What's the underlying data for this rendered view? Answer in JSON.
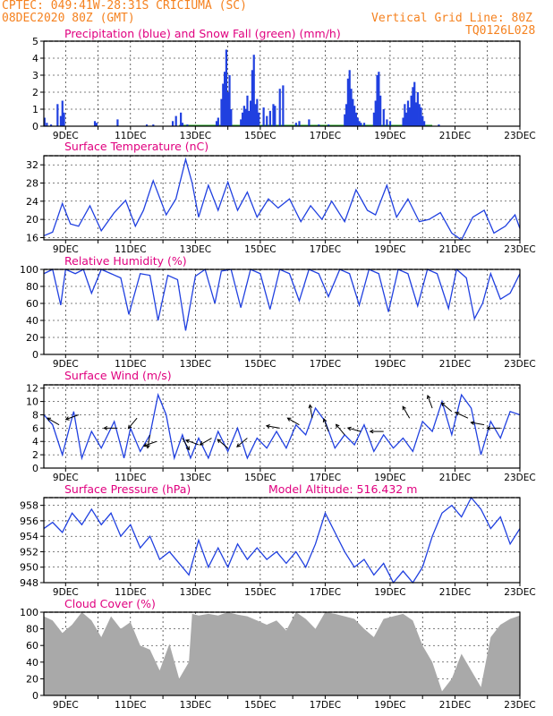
{
  "header": {
    "line1": "CPTEC:   049:41W-28:31S   CRICIUMA (SC)",
    "line2": "08DEC2020 80Z (GMT)",
    "vgrid": "Vertical Grid Line: 80Z",
    "code": "TQ0126L028"
  },
  "colors": {
    "header": "#f58220",
    "panel_title": "#e0007f",
    "series": "#2040e0",
    "snow": "#20a020",
    "cloud": "#a9a9a9"
  },
  "x_axis": {
    "tick_labels": [
      "9DEC",
      "11DEC",
      "13DEC",
      "15DEC",
      "17DEC",
      "19DEC",
      "21DEC",
      "23DEC"
    ],
    "tick_days": [
      9,
      11,
      13,
      15,
      17,
      19,
      21,
      23
    ],
    "xlim": [
      8.33,
      23.0
    ]
  },
  "chart_data": [
    {
      "type": "bar",
      "title": "Precipitation (blue) and Snow Fall (green) (mm/h)",
      "ylim": [
        0,
        5
      ],
      "yticks": [
        0,
        1,
        2,
        3,
        4,
        5
      ],
      "series": [
        {
          "x": [
            8.35,
            8.42,
            8.55,
            8.75,
            8.85,
            8.9,
            8.95,
            9.9,
            9.95,
            10.6,
            11.5,
            11.7,
            12.3,
            12.4,
            12.55,
            12.6,
            12.75,
            13.65,
            13.7,
            13.8,
            13.85,
            13.9,
            13.95,
            14.0,
            14.05,
            14.1,
            14.4,
            14.45,
            14.5,
            14.55,
            14.6,
            14.65,
            14.7,
            14.75,
            14.8,
            14.85,
            14.9,
            14.95,
            15.1,
            15.2,
            15.3,
            15.4,
            15.45,
            15.6,
            15.7,
            16.1,
            16.2,
            16.5,
            16.8,
            17.1,
            17.6,
            17.65,
            17.7,
            17.75,
            17.8,
            17.85,
            17.9,
            17.95,
            18.0,
            18.05,
            18.1,
            18.2,
            18.5,
            18.55,
            18.6,
            18.65,
            18.7,
            18.8,
            18.9,
            19.0,
            19.4,
            19.45,
            19.5,
            19.55,
            19.6,
            19.65,
            19.7,
            19.75,
            19.8,
            19.85,
            19.9,
            19.95,
            20.0,
            20.05,
            20.5
          ],
          "values": [
            0.5,
            0.2,
            0.1,
            1.3,
            0.6,
            1.5,
            0.8,
            0.3,
            0.2,
            0.4,
            0.1,
            0.1,
            0.3,
            0.6,
            0.8,
            0.2,
            0.1,
            0.3,
            0.5,
            1.6,
            2.5,
            3.2,
            4.5,
            2.0,
            3.0,
            1.0,
            0.4,
            0.8,
            1.2,
            1.0,
            1.8,
            0.9,
            1.5,
            3.3,
            4.2,
            1.3,
            1.6,
            0.8,
            1.1,
            0.6,
            0.9,
            1.3,
            1.2,
            2.2,
            2.4,
            0.2,
            0.3,
            0.4,
            0.1,
            0.1,
            0.7,
            1.3,
            2.8,
            3.3,
            2.2,
            1.6,
            1.2,
            0.8,
            0.5,
            0.3,
            0.2,
            0.2,
            0.8,
            1.5,
            3.0,
            3.2,
            1.8,
            1.0,
            0.4,
            0.3,
            0.5,
            1.3,
            0.8,
            1.5,
            1.1,
            1.8,
            2.3,
            2.6,
            1.4,
            2.0,
            1.3,
            1.1,
            0.6,
            0.3,
            0.1
          ]
        }
      ]
    },
    {
      "type": "line",
      "title": "Surface Temperature (nC)",
      "ylim": [
        15.5,
        34
      ],
      "yticks": [
        16,
        20,
        24,
        28,
        32
      ],
      "series": [
        {
          "x": [
            8.33,
            8.6,
            8.9,
            9.15,
            9.4,
            9.75,
            10.1,
            10.5,
            10.85,
            11.15,
            11.4,
            11.7,
            12.1,
            12.4,
            12.7,
            12.9,
            13.1,
            13.4,
            13.7,
            14.0,
            14.3,
            14.6,
            14.9,
            15.25,
            15.55,
            15.9,
            16.25,
            16.55,
            16.9,
            17.2,
            17.6,
            17.95,
            18.3,
            18.55,
            18.9,
            19.2,
            19.55,
            19.9,
            20.2,
            20.55,
            20.9,
            21.2,
            21.55,
            21.9,
            22.2,
            22.55,
            22.85,
            23.0
          ],
          "values": [
            16.4,
            17.2,
            23.5,
            19.0,
            18.5,
            23.0,
            17.5,
            21.5,
            24.2,
            18.5,
            22.0,
            28.5,
            21.0,
            24.5,
            33.2,
            28.0,
            20.5,
            27.5,
            22.0,
            28.2,
            22.0,
            26.0,
            20.5,
            24.5,
            22.5,
            24.5,
            19.5,
            23.0,
            20.0,
            24.0,
            19.5,
            26.5,
            22.0,
            21.0,
            27.5,
            20.5,
            24.5,
            19.5,
            20.0,
            21.5,
            17.0,
            15.5,
            20.5,
            22.0,
            17.0,
            18.5,
            21.0,
            18.0
          ]
        }
      ]
    },
    {
      "type": "line",
      "title": "Relative Humidity (%)",
      "ylim": [
        0,
        100
      ],
      "yticks": [
        0,
        20,
        40,
        60,
        80,
        100
      ],
      "series": [
        {
          "x": [
            8.33,
            8.6,
            8.85,
            9.0,
            9.3,
            9.55,
            9.8,
            10.1,
            10.4,
            10.7,
            10.95,
            11.3,
            11.6,
            11.85,
            12.15,
            12.45,
            12.7,
            13.0,
            13.3,
            13.6,
            13.8,
            14.1,
            14.4,
            14.7,
            15.0,
            15.3,
            15.6,
            15.9,
            16.2,
            16.5,
            16.8,
            17.1,
            17.45,
            17.75,
            18.05,
            18.35,
            18.65,
            18.95,
            19.25,
            19.55,
            19.85,
            20.15,
            20.45,
            20.8,
            21.05,
            21.35,
            21.6,
            21.85,
            22.1,
            22.4,
            22.7,
            23.0
          ],
          "values": [
            95,
            100,
            58,
            100,
            95,
            100,
            72,
            100,
            95,
            90,
            47,
            95,
            93,
            40,
            93,
            88,
            28,
            92,
            100,
            60,
            98,
            100,
            55,
            100,
            95,
            53,
            100,
            95,
            63,
            100,
            95,
            68,
            100,
            95,
            58,
            100,
            95,
            50,
            100,
            95,
            57,
            100,
            95,
            54,
            100,
            90,
            42,
            60,
            95,
            65,
            72,
            95
          ]
        }
      ]
    },
    {
      "type": "line",
      "title": "Surface Wind (m/s)",
      "ylim": [
        0,
        12.5
      ],
      "yticks": [
        0,
        2,
        4,
        6,
        8,
        10,
        12
      ],
      "series": [
        {
          "x": [
            8.33,
            8.6,
            8.9,
            9.25,
            9.5,
            9.8,
            10.1,
            10.5,
            10.8,
            11.0,
            11.3,
            11.6,
            11.85,
            12.1,
            12.35,
            12.6,
            12.85,
            13.1,
            13.4,
            13.7,
            14.0,
            14.3,
            14.6,
            14.9,
            15.2,
            15.5,
            15.8,
            16.1,
            16.4,
            16.7,
            17.0,
            17.3,
            17.6,
            17.9,
            18.2,
            18.5,
            18.8,
            19.1,
            19.4,
            19.7,
            20.0,
            20.3,
            20.6,
            20.9,
            21.2,
            21.5,
            21.8,
            22.1,
            22.4,
            22.7,
            23.0
          ],
          "values": [
            8.0,
            6.5,
            2.0,
            8.5,
            1.5,
            5.5,
            3.0,
            7.0,
            1.5,
            6.0,
            2.5,
            5.0,
            11.0,
            8.0,
            1.5,
            5.0,
            1.5,
            4.5,
            1.5,
            5.5,
            2.5,
            6.0,
            1.5,
            4.5,
            3.0,
            5.5,
            3.0,
            6.5,
            5.0,
            9.0,
            7.0,
            3.0,
            5.0,
            3.5,
            6.5,
            2.5,
            5.0,
            3.0,
            4.5,
            2.5,
            7.0,
            5.5,
            10.0,
            5.0,
            11.0,
            9.0,
            2.0,
            7.0,
            4.5,
            8.5,
            8.0
          ]
        }
      ]
    },
    {
      "type": "line",
      "title": "Surface Pressure (hPa)",
      "annotation": "Model Altitude: 516.432 m",
      "ylim": [
        948,
        959
      ],
      "yticks": [
        948,
        950,
        952,
        954,
        956,
        958
      ],
      "series": [
        {
          "x": [
            8.33,
            8.6,
            8.9,
            9.2,
            9.5,
            9.8,
            10.1,
            10.4,
            10.7,
            11.0,
            11.3,
            11.6,
            11.9,
            12.2,
            12.5,
            12.8,
            13.1,
            13.4,
            13.7,
            14.0,
            14.3,
            14.6,
            14.9,
            15.2,
            15.5,
            15.8,
            16.1,
            16.4,
            16.7,
            17.0,
            17.3,
            17.6,
            17.9,
            18.2,
            18.5,
            18.8,
            19.1,
            19.4,
            19.7,
            20.0,
            20.3,
            20.6,
            20.9,
            21.2,
            21.5,
            21.8,
            22.1,
            22.4,
            22.7,
            23.0
          ],
          "values": [
            955.0,
            955.8,
            954.5,
            957.0,
            955.5,
            957.5,
            955.5,
            957.0,
            954.0,
            955.5,
            952.5,
            954.0,
            951.0,
            952.0,
            950.5,
            949.0,
            953.5,
            950.0,
            952.5,
            950.0,
            953.0,
            951.0,
            952.5,
            951.0,
            952.0,
            950.5,
            952.0,
            950.0,
            953.0,
            957.0,
            954.5,
            952.0,
            950.0,
            951.0,
            949.0,
            950.5,
            948.0,
            949.5,
            948.0,
            950.0,
            954.0,
            957.0,
            958.0,
            956.5,
            959.0,
            957.5,
            955.0,
            956.5,
            953.0,
            955.0
          ]
        }
      ]
    },
    {
      "type": "area",
      "title": "Cloud Cover (%)",
      "ylim": [
        0,
        100
      ],
      "yticks": [
        0,
        20,
        40,
        60,
        80,
        100
      ],
      "series": [
        {
          "x": [
            8.33,
            8.6,
            8.9,
            9.2,
            9.5,
            9.8,
            10.1,
            10.4,
            10.7,
            11.0,
            11.3,
            11.6,
            11.9,
            12.2,
            12.5,
            12.8,
            12.9,
            13.1,
            13.4,
            13.7,
            14.0,
            14.3,
            14.6,
            14.9,
            15.2,
            15.5,
            15.8,
            16.1,
            16.4,
            16.7,
            17.0,
            17.3,
            17.6,
            17.9,
            18.2,
            18.5,
            18.8,
            19.1,
            19.4,
            19.7,
            20.0,
            20.3,
            20.6,
            20.9,
            21.2,
            21.5,
            21.8,
            22.1,
            22.4,
            22.7,
            23.0
          ],
          "values": [
            95,
            90,
            75,
            85,
            100,
            90,
            70,
            95,
            80,
            88,
            60,
            55,
            30,
            62,
            20,
            40,
            98,
            96,
            98,
            96,
            100,
            97,
            95,
            90,
            85,
            90,
            78,
            100,
            92,
            80,
            100,
            98,
            95,
            92,
            80,
            70,
            92,
            95,
            98,
            90,
            60,
            40,
            5,
            20,
            50,
            30,
            10,
            70,
            85,
            92,
            96
          ]
        }
      ]
    }
  ],
  "wind_arrows": [
    {
      "x": 8.8,
      "y": 6.5,
      "angle": 150
    },
    {
      "x": 9.4,
      "y": 8.0,
      "angle": 200
    },
    {
      "x": 10.6,
      "y": 6.0,
      "angle": 180
    },
    {
      "x": 11.2,
      "y": 7.5,
      "angle": 230
    },
    {
      "x": 11.6,
      "y": 5.0,
      "angle": 260
    },
    {
      "x": 11.8,
      "y": 4.0,
      "angle": 200
    },
    {
      "x": 12.6,
      "y": 4.5,
      "angle": 300
    },
    {
      "x": 13.1,
      "y": 3.5,
      "angle": 160
    },
    {
      "x": 13.5,
      "y": 4.5,
      "angle": 210
    },
    {
      "x": 14.0,
      "y": 3.0,
      "angle": 140
    },
    {
      "x": 14.6,
      "y": 4.5,
      "angle": 220
    },
    {
      "x": 15.6,
      "y": 6.0,
      "angle": 170
    },
    {
      "x": 16.2,
      "y": 6.5,
      "angle": 150
    },
    {
      "x": 16.6,
      "y": 7.5,
      "angle": 100
    },
    {
      "x": 17.1,
      "y": 5.5,
      "angle": 110
    },
    {
      "x": 17.6,
      "y": 5.0,
      "angle": 130
    },
    {
      "x": 18.1,
      "y": 5.5,
      "angle": 165
    },
    {
      "x": 18.8,
      "y": 5.5,
      "angle": 180
    },
    {
      "x": 19.6,
      "y": 7.5,
      "angle": 120
    },
    {
      "x": 20.3,
      "y": 9.0,
      "angle": 110
    },
    {
      "x": 20.9,
      "y": 8.5,
      "angle": 140
    },
    {
      "x": 21.4,
      "y": 7.5,
      "angle": 155
    },
    {
      "x": 21.9,
      "y": 6.5,
      "angle": 170
    },
    {
      "x": 22.4,
      "y": 6.0,
      "angle": 180
    }
  ]
}
